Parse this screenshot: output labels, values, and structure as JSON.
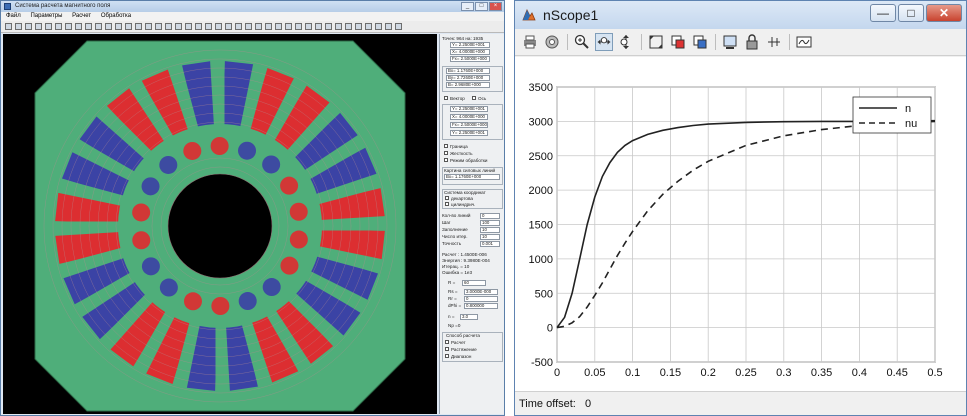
{
  "left_window": {
    "title": "Система расчета магнитного поля",
    "window_buttons": {
      "minimize": "_",
      "maximize": "□",
      "close": "×"
    },
    "menu": [
      "Файл",
      "Параметры",
      "Расчет",
      "Обработка"
    ],
    "panel": {
      "top_lines": [
        "Точек: 964  на: 1935",
        "Y= 2.2500E+001",
        "X= 4.0000E+000",
        "Fx= 2.5000E+000"
      ],
      "mid_lines": [
        "Bx= 1.1760E+000",
        "By= 2.7260E+000",
        "B= 2.9680E+000"
      ],
      "checkbox_lines": [
        "Вектор",
        "Ось"
      ],
      "lower_lines": [
        "Граница",
        "Жесткость",
        "Режим обработки"
      ],
      "section_label": "Картина силовых линий",
      "coord_label": "Система координат",
      "coord_options": [
        "декартова",
        "цилиндрич."
      ],
      "field_labels": [
        "Кол-во линий",
        "Шаг",
        "Заполнение",
        "Число итер.",
        "Точность"
      ],
      "field_values": [
        "0",
        "100",
        "10",
        "10",
        "0.001"
      ],
      "result_lines": [
        "Расчет : 1.4500E-006",
        "Энергия : 9.3980E-004",
        "Итерац. = 10",
        "Ошибка = 1e3"
      ],
      "r_label": "R =",
      "r_value": "60",
      "param_lines": [
        "Rs =",
        "Rr =",
        "dPhi ="
      ],
      "param_values": [
        "3.0000E-000",
        "0",
        "0.800000"
      ],
      "n_label": "n =",
      "n_value": "3.0",
      "np_label": "Np =0",
      "bottom_group_label": "Способ расчета",
      "bottom_options": [
        "Расчет",
        "Растяжение",
        "Диапазон"
      ]
    },
    "canvas_bg": "#000000",
    "colors": {
      "iron": "#4fae7a",
      "coil_red": "#e8232a",
      "coil_blue": "#3a3aa8",
      "air": "#000000"
    }
  },
  "right_window": {
    "title": "nScope1",
    "window_buttons": {
      "minimize": "—",
      "maximize": "□",
      "close": "✕"
    },
    "toolbar_icons": [
      "print-icon",
      "parameters-icon",
      "zoom-icon",
      "zoom-x-icon",
      "zoom-y-icon",
      "autoscale-icon",
      "save-axes-icon",
      "restore-axes-icon",
      "floating-scope-icon",
      "lock-icon",
      "signal-selection-icon",
      "legend-icon"
    ],
    "status_label": "Time offset:",
    "status_value": "0"
  },
  "chart_data": {
    "type": "line",
    "xlim": [
      0,
      0.5
    ],
    "ylim": [
      -500,
      3500
    ],
    "x_ticks": [
      "0",
      "0.05",
      "0.1",
      "0.15",
      "0.2",
      "0.25",
      "0.3",
      "0.35",
      "0.4",
      "0.45",
      "0.5"
    ],
    "y_ticks": [
      "-500",
      "0",
      "500",
      "1000",
      "1500",
      "2000",
      "2500",
      "3000",
      "3500"
    ],
    "grid": true,
    "legend_position": "top-right",
    "series": [
      {
        "name": "n",
        "style": "solid",
        "x": [
          0,
          0.01,
          0.02,
          0.03,
          0.04,
          0.05,
          0.06,
          0.07,
          0.08,
          0.09,
          0.1,
          0.12,
          0.14,
          0.16,
          0.18,
          0.2,
          0.25,
          0.3,
          0.35,
          0.4,
          0.45,
          0.5
        ],
        "y": [
          0,
          150,
          500,
          1000,
          1500,
          1900,
          2200,
          2400,
          2550,
          2650,
          2720,
          2810,
          2870,
          2910,
          2940,
          2960,
          2985,
          2995,
          3000,
          3000,
          3005,
          3010
        ]
      },
      {
        "name": "nu",
        "style": "dashed",
        "x": [
          0,
          0.01,
          0.02,
          0.03,
          0.04,
          0.05,
          0.06,
          0.07,
          0.08,
          0.09,
          0.1,
          0.12,
          0.14,
          0.16,
          0.18,
          0.2,
          0.25,
          0.3,
          0.35,
          0.4,
          0.45,
          0.5
        ],
        "y": [
          0,
          20,
          70,
          160,
          300,
          470,
          650,
          850,
          1050,
          1230,
          1400,
          1700,
          1940,
          2130,
          2290,
          2420,
          2650,
          2790,
          2880,
          2940,
          2970,
          3000
        ]
      }
    ],
    "colors": {
      "line": "#222222",
      "grid": "#c8c8c8",
      "axes": "#333333"
    }
  }
}
